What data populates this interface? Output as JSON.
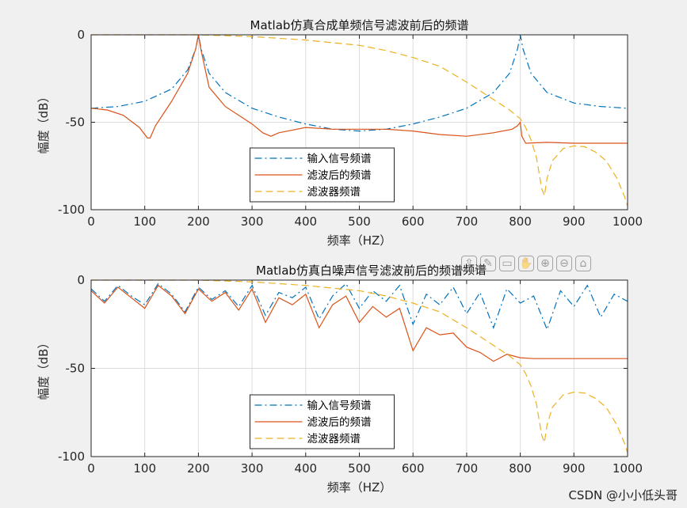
{
  "chart_data": [
    {
      "type": "line",
      "title": "Matlab仿真合成单频信号滤波前后的频谱",
      "xlabel": "频率（HZ）",
      "ylabel": "幅度（dB）",
      "xlim": [
        0,
        1000
      ],
      "ylim": [
        -100,
        0
      ],
      "xticks": [
        "0",
        "100",
        "200",
        "300",
        "400",
        "500",
        "600",
        "700",
        "800",
        "900",
        "1000"
      ],
      "yticks": [
        "0",
        "-50",
        "-100"
      ],
      "grid": true,
      "legend": "bottom-center",
      "series": [
        {
          "name": "输入信号频谱",
          "style": "dashdot",
          "color": "#0072BD",
          "x": [
            0,
            50,
            100,
            150,
            180,
            195,
            200,
            205,
            220,
            250,
            300,
            350,
            400,
            450,
            500,
            550,
            600,
            650,
            700,
            750,
            780,
            795,
            800,
            805,
            820,
            850,
            900,
            950,
            1000
          ],
          "y": [
            -42,
            -41,
            -38,
            -31,
            -20,
            -8,
            0,
            -8,
            -22,
            -33,
            -42,
            -47,
            -51,
            -54,
            -55,
            -54,
            -51,
            -47,
            -42,
            -33,
            -22,
            -8,
            0,
            -8,
            -22,
            -33,
            -39,
            -41,
            -42
          ]
        },
        {
          "name": "滤波后的频谱",
          "style": "solid",
          "color": "#D95319",
          "x": [
            0,
            30,
            60,
            90,
            105,
            110,
            120,
            150,
            180,
            195,
            200,
            205,
            220,
            250,
            280,
            300,
            320,
            335,
            350,
            400,
            450,
            500,
            550,
            600,
            650,
            700,
            750,
            785,
            795,
            800,
            803,
            810,
            850,
            900,
            950,
            1000
          ],
          "y": [
            -42,
            -43,
            -46,
            -53,
            -59,
            -59,
            -52,
            -38,
            -22,
            -8,
            0,
            -9,
            -30,
            -41,
            -47,
            -51,
            -56,
            -58,
            -56,
            -53,
            -54,
            -54,
            -54,
            -55,
            -57,
            -58,
            -56,
            -54,
            -52,
            -50,
            -58,
            -62,
            -61.5,
            -62,
            -62,
            -62
          ]
        },
        {
          "name": "滤波器频谱",
          "style": "dashed",
          "color": "#EDB120",
          "x": [
            0,
            100,
            200,
            300,
            400,
            500,
            550,
            600,
            650,
            700,
            720,
            750,
            780,
            800,
            810,
            820,
            830,
            840,
            845,
            850,
            860,
            880,
            900,
            920,
            940,
            960,
            980,
            995,
            1000
          ],
          "y": [
            0,
            0,
            0,
            -1,
            -3,
            -6,
            -9,
            -13,
            -18,
            -27,
            -31,
            -37,
            -43,
            -48,
            -53,
            -60,
            -70,
            -88,
            -92,
            -82,
            -72,
            -65,
            -63.5,
            -64,
            -67,
            -72,
            -82,
            -93,
            -98
          ]
        }
      ]
    },
    {
      "type": "line",
      "title": "Matlab仿真白噪声信号滤波前后的频谱",
      "xlabel": "频率（HZ）",
      "ylabel": "幅度（dB）",
      "xlim": [
        0,
        1000
      ],
      "ylim": [
        -100,
        0
      ],
      "xticks": [
        "0",
        "100",
        "200",
        "300",
        "400",
        "500",
        "600",
        "700",
        "800",
        "900",
        "1000"
      ],
      "yticks": [
        "0",
        "-50",
        "-100"
      ],
      "grid": true,
      "legend": "bottom-center",
      "series": [
        {
          "name": "输入信号频谱",
          "style": "dashdot",
          "color": "#0072BD",
          "x": [
            0,
            25,
            50,
            75,
            100,
            125,
            150,
            175,
            200,
            225,
            250,
            275,
            300,
            325,
            350,
            375,
            400,
            425,
            450,
            475,
            500,
            525,
            550,
            575,
            600,
            625,
            650,
            675,
            700,
            725,
            750,
            775,
            800,
            825,
            850,
            875,
            900,
            925,
            950,
            975,
            1000
          ],
          "y": [
            -5,
            -12,
            -3,
            -9,
            -14,
            -2,
            -8,
            -18,
            -4,
            -11,
            -6,
            -15,
            -3,
            -20,
            -7,
            -10,
            -4,
            -22,
            -9,
            -2,
            -16,
            -6,
            -12,
            -3,
            -25,
            -8,
            -14,
            -4,
            -19,
            -7,
            -27,
            -5,
            -13,
            -9,
            -28,
            -6,
            -15,
            -3,
            -21,
            -8,
            -12
          ]
        },
        {
          "name": "滤波后的频谱",
          "style": "solid",
          "color": "#D95319",
          "x": [
            0,
            25,
            50,
            75,
            100,
            125,
            150,
            175,
            200,
            225,
            250,
            275,
            300,
            325,
            350,
            375,
            400,
            425,
            450,
            475,
            500,
            525,
            550,
            575,
            600,
            625,
            650,
            675,
            700,
            725,
            750,
            775,
            800,
            825,
            850,
            900,
            950,
            1000
          ],
          "y": [
            -6,
            -13,
            -4,
            -10,
            -16,
            -3,
            -9,
            -19,
            -5,
            -12,
            -7,
            -17,
            -5,
            -24,
            -10,
            -14,
            -8,
            -27,
            -14,
            -9,
            -24,
            -15,
            -21,
            -16,
            -40,
            -27,
            -31,
            -30,
            -38,
            -41,
            -46,
            -42,
            -44,
            -44.5,
            -44.5,
            -44.5,
            -44.5,
            -44.5
          ]
        },
        {
          "name": "滤波器频谱",
          "style": "dashed",
          "color": "#EDB120",
          "x": [
            0,
            100,
            200,
            300,
            400,
            500,
            550,
            600,
            650,
            700,
            720,
            750,
            780,
            800,
            810,
            820,
            830,
            840,
            845,
            850,
            860,
            880,
            900,
            920,
            940,
            960,
            980,
            995,
            1000
          ],
          "y": [
            0,
            0,
            0,
            -1,
            -3,
            -6,
            -9,
            -13,
            -18,
            -27,
            -31,
            -37,
            -43,
            -48,
            -53,
            -60,
            -70,
            -88,
            -92,
            -82,
            -72,
            -65,
            -63.5,
            -64,
            -67,
            -72,
            -82,
            -93,
            -98
          ]
        }
      ]
    }
  ],
  "watermark": "CSDN @小小低头哥",
  "toolbar": {
    "partial_text": "频谱",
    "icons": [
      "export-icon",
      "brush-icon",
      "datatip-icon",
      "pan-icon",
      "zoom-in-icon",
      "zoom-out-icon",
      "home-icon"
    ]
  }
}
